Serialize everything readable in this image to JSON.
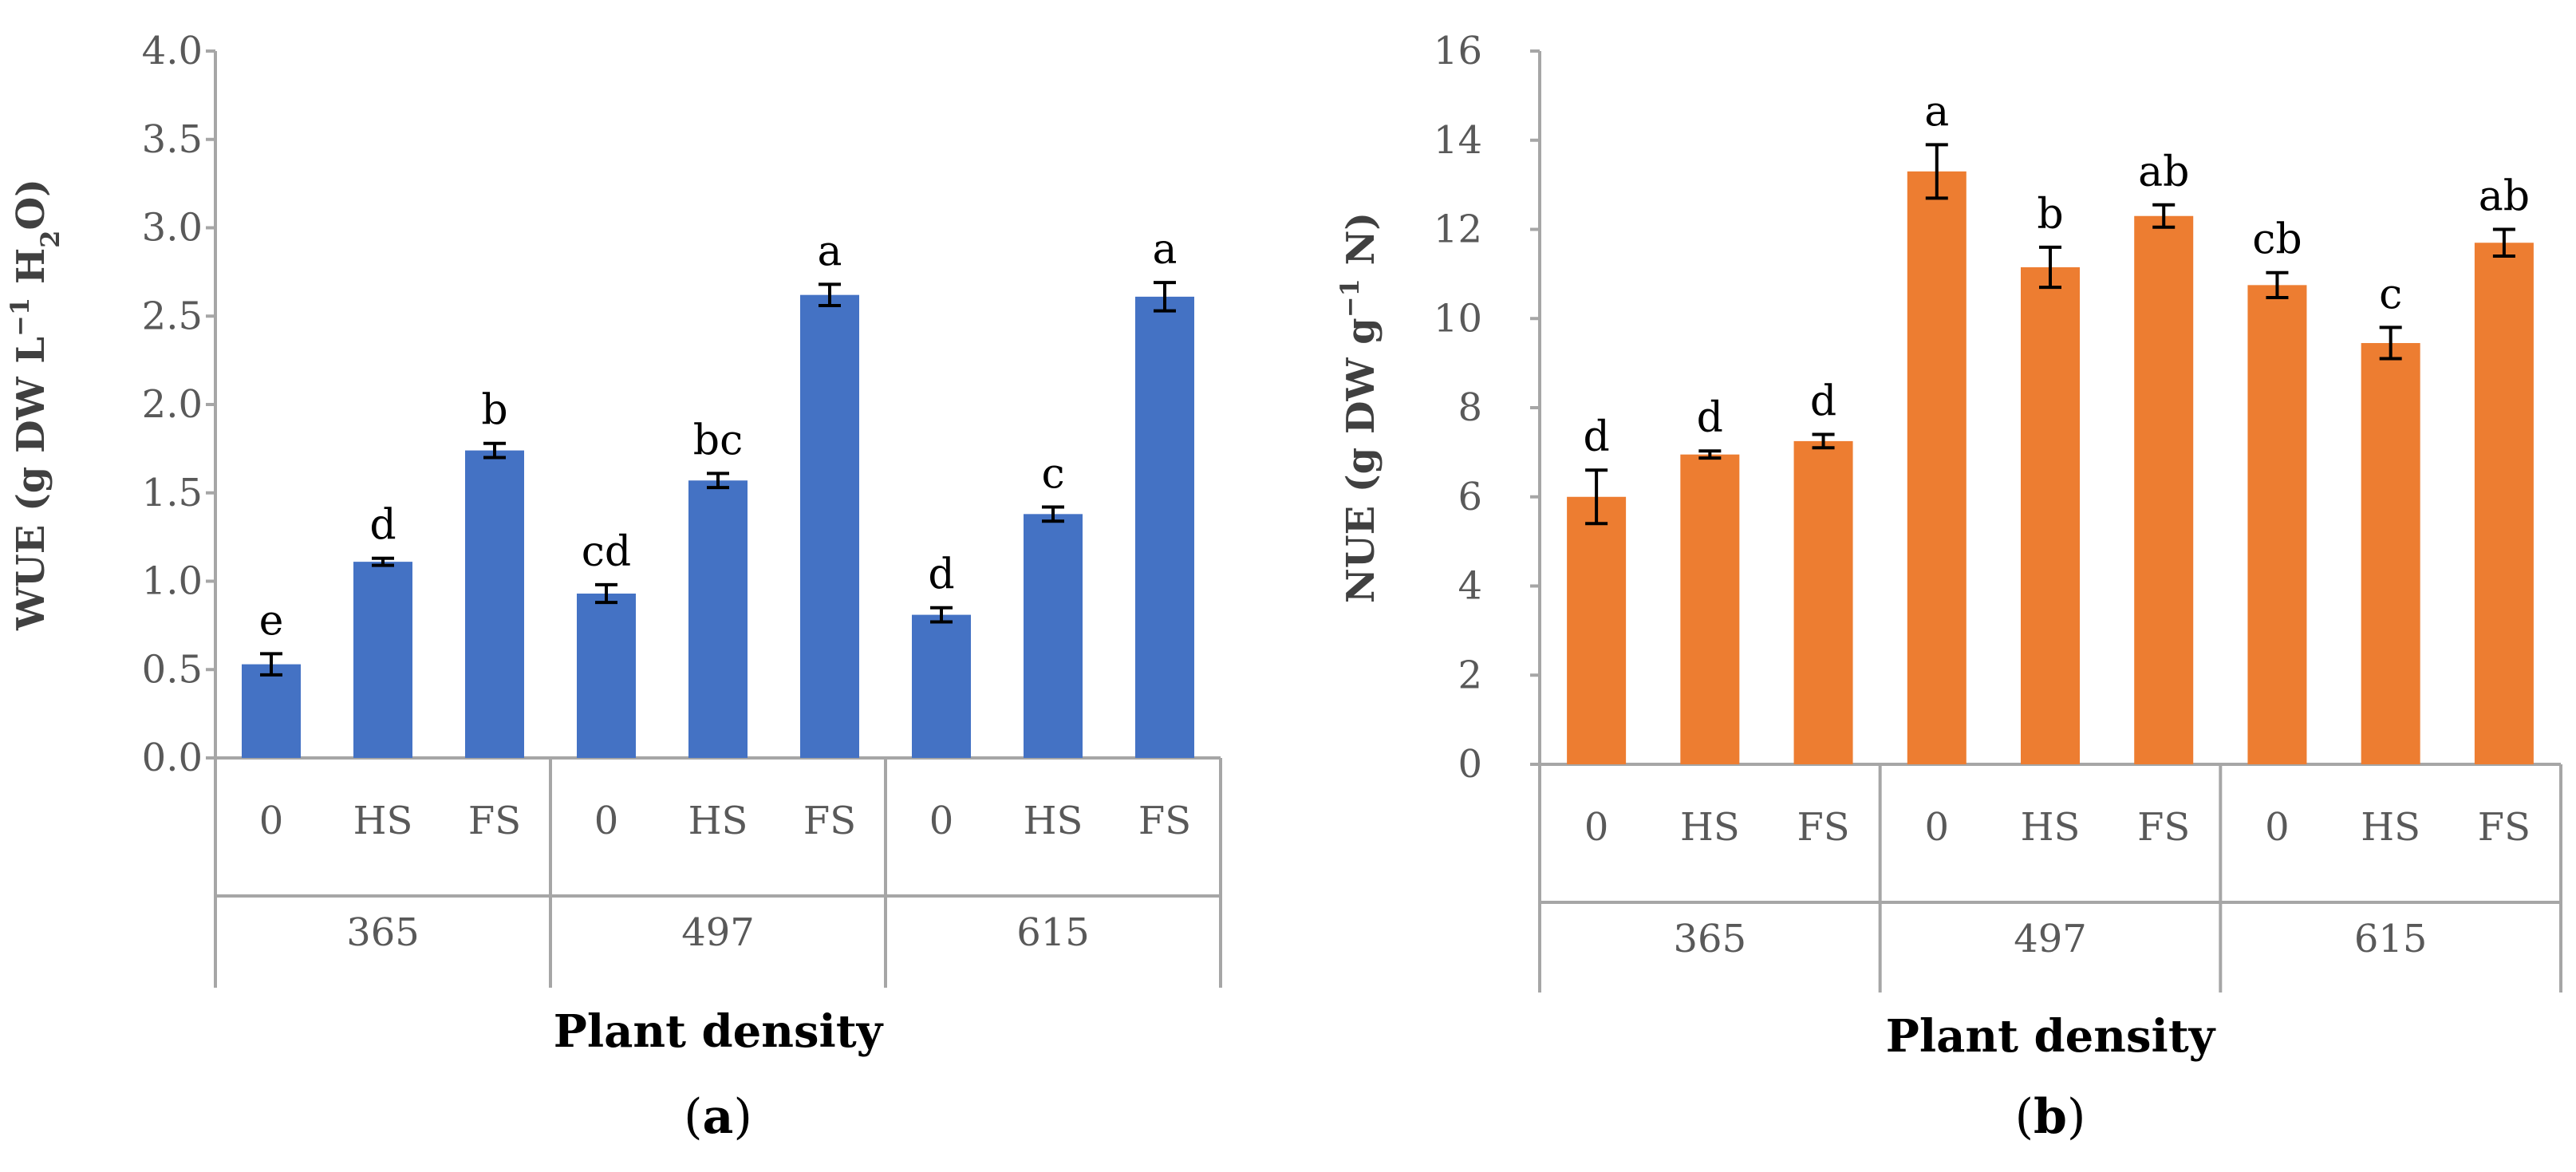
{
  "chart_data": [
    {
      "panel": "(a)",
      "type": "bar",
      "color": "#4472C4",
      "ylabel_parts": [
        "WUE (g DW L",
        "−1",
        " H",
        "2",
        "O)"
      ],
      "xlabel": "Plant density",
      "ylim": [
        0,
        4.0
      ],
      "yticks": [
        "0.0",
        "0.5",
        "1.0",
        "1.5",
        "2.0",
        "2.5",
        "3.0",
        "3.5",
        "4.0"
      ],
      "groups": [
        "365",
        "497",
        "615"
      ],
      "subcategories": [
        "0",
        "HS",
        "FS",
        "0",
        "HS",
        "FS",
        "0",
        "HS",
        "FS"
      ],
      "values": [
        0.53,
        1.11,
        1.74,
        0.93,
        1.57,
        2.62,
        0.81,
        1.38,
        2.61
      ],
      "errors": [
        0.06,
        0.02,
        0.04,
        0.05,
        0.04,
        0.06,
        0.04,
        0.04,
        0.08
      ],
      "letters": [
        "e",
        "d",
        "b",
        "cd",
        "bc",
        "a",
        "d",
        "c",
        "a"
      ]
    },
    {
      "panel": "(b)",
      "type": "bar",
      "color": "#ED7D31",
      "ylabel_parts": [
        "NUE (g DW g",
        "−1",
        " N)"
      ],
      "xlabel": "Plant density",
      "ylim": [
        0,
        16
      ],
      "yticks": [
        "0",
        "2",
        "4",
        "6",
        "8",
        "10",
        "12",
        "14",
        "16"
      ],
      "groups": [
        "365",
        "497",
        "615"
      ],
      "subcategories": [
        "0",
        "HS",
        "FS",
        "0",
        "HS",
        "FS",
        "0",
        "HS",
        "FS"
      ],
      "values": [
        6.0,
        6.95,
        7.25,
        13.3,
        11.15,
        12.3,
        10.75,
        9.45,
        11.7
      ],
      "errors": [
        0.6,
        0.08,
        0.15,
        0.6,
        0.45,
        0.25,
        0.28,
        0.35,
        0.3
      ],
      "letters": [
        "d",
        "d",
        "d",
        "a",
        "b",
        "ab",
        "cb",
        "c",
        "ab"
      ]
    }
  ]
}
